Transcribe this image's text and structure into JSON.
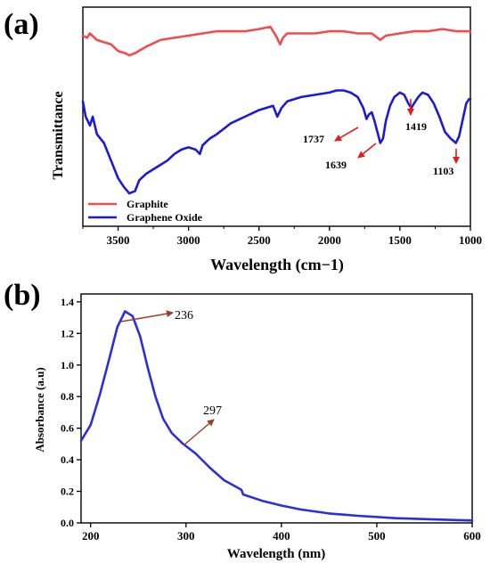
{
  "chart_data": [
    {
      "panel_label": "(a)",
      "type": "line",
      "xlabel": "Wavelength (cm−1)",
      "ylabel": "Transmittance",
      "xlim": [
        3750,
        1000
      ],
      "x_reversed": true,
      "y_ticks_shown": false,
      "xticks": [
        3500,
        3000,
        2500,
        2000,
        1500,
        1000
      ],
      "legend_position": "bottom-left",
      "series": [
        {
          "name": "Graphite",
          "color": "#f04c50",
          "points": [
            [
              3750,
              0.87
            ],
            [
              3720,
              0.86
            ],
            [
              3700,
              0.88
            ],
            [
              3650,
              0.85
            ],
            [
              3600,
              0.84
            ],
            [
              3550,
              0.83
            ],
            [
              3500,
              0.8
            ],
            [
              3450,
              0.79
            ],
            [
              3420,
              0.78
            ],
            [
              3380,
              0.79
            ],
            [
              3300,
              0.82
            ],
            [
              3200,
              0.85
            ],
            [
              3100,
              0.86
            ],
            [
              3000,
              0.87
            ],
            [
              2900,
              0.88
            ],
            [
              2800,
              0.89
            ],
            [
              2700,
              0.89
            ],
            [
              2600,
              0.89
            ],
            [
              2500,
              0.9
            ],
            [
              2420,
              0.91
            ],
            [
              2380,
              0.87
            ],
            [
              2350,
              0.83
            ],
            [
              2330,
              0.86
            ],
            [
              2300,
              0.88
            ],
            [
              2200,
              0.88
            ],
            [
              2100,
              0.88
            ],
            [
              2000,
              0.89
            ],
            [
              1900,
              0.89
            ],
            [
              1800,
              0.88
            ],
            [
              1700,
              0.88
            ],
            [
              1640,
              0.85
            ],
            [
              1600,
              0.87
            ],
            [
              1500,
              0.88
            ],
            [
              1400,
              0.89
            ],
            [
              1300,
              0.89
            ],
            [
              1200,
              0.9
            ],
            [
              1100,
              0.89
            ],
            [
              1000,
              0.89
            ]
          ]
        },
        {
          "name": "Graphene Oxide",
          "color": "#1c1ad6",
          "points": [
            [
              3750,
              0.57
            ],
            [
              3730,
              0.5
            ],
            [
              3700,
              0.46
            ],
            [
              3680,
              0.5
            ],
            [
              3650,
              0.42
            ],
            [
              3600,
              0.38
            ],
            [
              3550,
              0.3
            ],
            [
              3500,
              0.22
            ],
            [
              3460,
              0.18
            ],
            [
              3420,
              0.15
            ],
            [
              3380,
              0.16
            ],
            [
              3350,
              0.21
            ],
            [
              3300,
              0.24
            ],
            [
              3250,
              0.26
            ],
            [
              3200,
              0.28
            ],
            [
              3150,
              0.3
            ],
            [
              3100,
              0.33
            ],
            [
              3050,
              0.35
            ],
            [
              3000,
              0.36
            ],
            [
              2950,
              0.35
            ],
            [
              2920,
              0.33
            ],
            [
              2900,
              0.37
            ],
            [
              2850,
              0.4
            ],
            [
              2800,
              0.42
            ],
            [
              2700,
              0.47
            ],
            [
              2600,
              0.5
            ],
            [
              2500,
              0.53
            ],
            [
              2400,
              0.55
            ],
            [
              2370,
              0.5
            ],
            [
              2340,
              0.54
            ],
            [
              2300,
              0.57
            ],
            [
              2200,
              0.59
            ],
            [
              2100,
              0.6
            ],
            [
              2000,
              0.61
            ],
            [
              1950,
              0.62
            ],
            [
              1900,
              0.62
            ],
            [
              1850,
              0.61
            ],
            [
              1800,
              0.59
            ],
            [
              1760,
              0.54
            ],
            [
              1737,
              0.49
            ],
            [
              1720,
              0.51
            ],
            [
              1700,
              0.52
            ],
            [
              1680,
              0.48
            ],
            [
              1660,
              0.43
            ],
            [
              1639,
              0.38
            ],
            [
              1620,
              0.4
            ],
            [
              1600,
              0.48
            ],
            [
              1570,
              0.55
            ],
            [
              1540,
              0.59
            ],
            [
              1500,
              0.61
            ],
            [
              1470,
              0.6
            ],
            [
              1440,
              0.56
            ],
            [
              1419,
              0.54
            ],
            [
              1400,
              0.56
            ],
            [
              1370,
              0.59
            ],
            [
              1340,
              0.61
            ],
            [
              1300,
              0.6
            ],
            [
              1260,
              0.56
            ],
            [
              1220,
              0.5
            ],
            [
              1180,
              0.43
            ],
            [
              1140,
              0.4
            ],
            [
              1103,
              0.38
            ],
            [
              1080,
              0.41
            ],
            [
              1050,
              0.5
            ],
            [
              1030,
              0.56
            ],
            [
              1010,
              0.58
            ],
            [
              1000,
              0.58
            ]
          ]
        }
      ],
      "annotations": [
        "1737",
        "1639",
        "1419",
        "1103"
      ]
    },
    {
      "panel_label": "(b)",
      "type": "line",
      "xlabel": "Wavelength (nm)",
      "ylabel": "Absorbance (a.u)",
      "xlim": [
        190,
        600
      ],
      "ylim": [
        0,
        1.45
      ],
      "xticks": [
        200,
        300,
        400,
        500,
        600
      ],
      "yticks": [
        "0.0",
        "0.2",
        "0.4",
        "0.6",
        "0.8",
        "1.0",
        "1.2",
        "1.4"
      ],
      "series": [
        {
          "color": "#2d2de0",
          "points": [
            [
              190,
              0.52
            ],
            [
              200,
              0.62
            ],
            [
              210,
              0.82
            ],
            [
              220,
              1.05
            ],
            [
              228,
              1.24
            ],
            [
              236,
              1.34
            ],
            [
              244,
              1.31
            ],
            [
              252,
              1.18
            ],
            [
              260,
              0.98
            ],
            [
              268,
              0.8
            ],
            [
              276,
              0.66
            ],
            [
              285,
              0.57
            ],
            [
              297,
              0.5
            ],
            [
              310,
              0.44
            ],
            [
              325,
              0.35
            ],
            [
              340,
              0.27
            ],
            [
              358,
              0.21
            ],
            [
              360,
              0.18
            ],
            [
              380,
              0.14
            ],
            [
              400,
              0.11
            ],
            [
              420,
              0.085
            ],
            [
              450,
              0.06
            ],
            [
              480,
              0.045
            ],
            [
              520,
              0.03
            ],
            [
              560,
              0.022
            ],
            [
              600,
              0.015
            ]
          ]
        }
      ],
      "annotations": [
        "236",
        "297"
      ]
    }
  ]
}
